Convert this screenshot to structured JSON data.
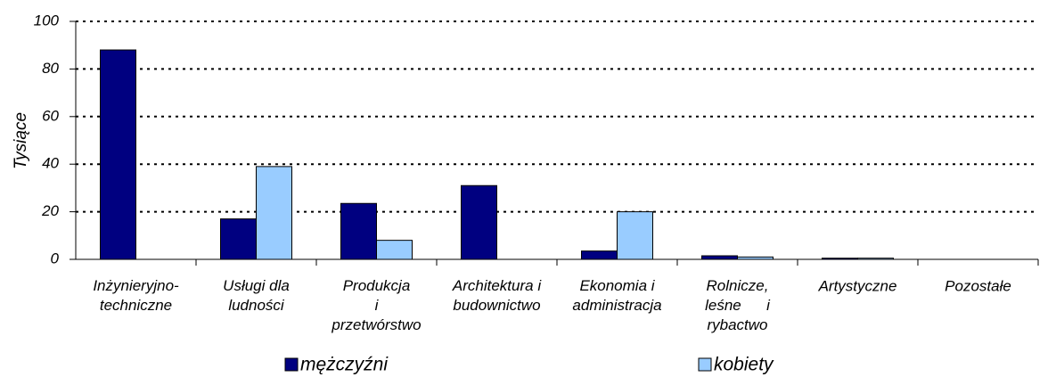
{
  "chart_data": {
    "type": "bar",
    "y_label": "Tysiące",
    "categories": [
      "Inżynieryjno-\ntechniczne",
      "Usługi dla\nludności",
      "Produkcja\ni\nprzetwórstwo",
      "Architektura i\nbudownictwo",
      "Ekonomia i\nadministracja",
      "Rolnicze,\nleśne      i\nrybactwo",
      "Artystyczne",
      "Pozostałe"
    ],
    "series": [
      {
        "name": "mężczyźni",
        "color": "#000080",
        "values": [
          88,
          17,
          23.5,
          31,
          3.5,
          1.5,
          0.5,
          0
        ]
      },
      {
        "name": "kobiety",
        "color": "#99ccff",
        "values": [
          0,
          39,
          8,
          0,
          20,
          1,
          0.5,
          0
        ]
      }
    ],
    "ylim": [
      0,
      100
    ],
    "yticks": [
      0,
      20,
      40,
      60,
      80,
      100
    ],
    "grid": true,
    "legend": "bottom"
  }
}
